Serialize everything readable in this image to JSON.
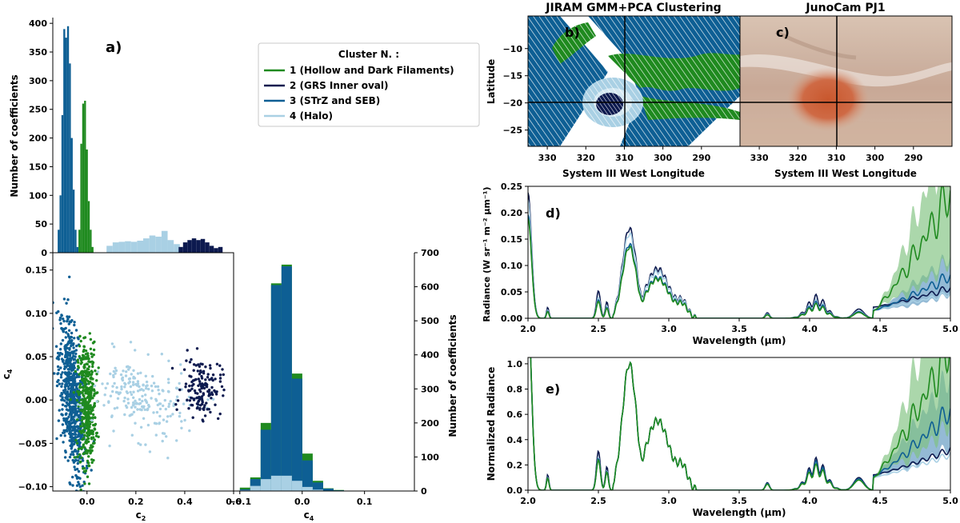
{
  "colors": {
    "c1": "#1f8a1f",
    "c2": "#0d1a4f",
    "c3": "#0e5f94",
    "c4": "#a9d0e4",
    "c1_fill": "#7ec27e",
    "c3_fill": "#5b95bf"
  },
  "legend": {
    "title": "Cluster N. :",
    "items": [
      "1 (Hollow and Dark Filaments)",
      "2 (GRS Inner oval)",
      "3 (STrZ and SEB)",
      "4 (Halo)"
    ]
  },
  "panel_labels": [
    "a)",
    "b)",
    "c)",
    "d)",
    "e)"
  ],
  "chart_data": [
    {
      "id": "hist_c2",
      "type": "bar",
      "title": "",
      "xlabel": "",
      "ylabel": "Number of coefficients",
      "xlim": [
        -0.14,
        0.6
      ],
      "ylim": [
        0,
        410
      ],
      "yticks": [
        "0",
        "50",
        "100",
        "150",
        "200",
        "250",
        "300",
        "350",
        "400"
      ],
      "series": [
        {
          "name": "3 (STrZ and SEB)",
          "bin_start": -0.12,
          "bin_width": 0.0077,
          "values": [
            40,
            100,
            240,
            390,
            375,
            395,
            330,
            200,
            110,
            40,
            10
          ]
        },
        {
          "name": "1 (Hollow and Dark Filaments)",
          "bin_start": -0.035,
          "bin_width": 0.0077,
          "values": [
            40,
            190,
            260,
            265,
            180,
            90,
            40,
            10
          ]
        },
        {
          "name": "4 (Halo)",
          "bin_start": 0.08,
          "bin_width": 0.025,
          "values": [
            12,
            18,
            19,
            20,
            19,
            21,
            25,
            30,
            28,
            38,
            22,
            15
          ]
        },
        {
          "name": "2 (GRS Inner oval)",
          "bin_start": 0.375,
          "bin_width": 0.018,
          "values": [
            10,
            18,
            22,
            25,
            22,
            24,
            18,
            12,
            8,
            10
          ]
        }
      ]
    },
    {
      "id": "scatter_c2_c4",
      "type": "scatter",
      "xlabel": "c",
      "xlabel_sub": "2",
      "ylabel": "c",
      "ylabel_sub": "4",
      "xlim": [
        -0.14,
        0.6
      ],
      "ylim": [
        -0.105,
        0.17
      ],
      "xticks": [
        "0.0",
        "0.2",
        "0.4",
        "0.6"
      ],
      "xtick_values": [
        0.0,
        0.2,
        0.4,
        0.6
      ],
      "yticks": [
        "0.15",
        "0.10",
        "0.05",
        "0.00",
        "−0.05",
        "−0.10"
      ],
      "ytick_values": [
        0.15,
        0.1,
        0.05,
        0.0,
        -0.05,
        -0.1
      ],
      "series": [
        {
          "name": "3",
          "center": [
            -0.06,
            0.0
          ],
          "spread": [
            0.028,
            0.04
          ],
          "count": 700
        },
        {
          "name": "1",
          "center": [
            0.0,
            -0.005
          ],
          "spread": [
            0.018,
            0.035
          ],
          "count": 420
        },
        {
          "name": "4",
          "center": [
            0.22,
            0.0
          ],
          "spread": [
            0.1,
            0.022
          ],
          "count": 220
        },
        {
          "name": "2",
          "center": [
            0.47,
            0.015
          ],
          "spread": [
            0.04,
            0.017
          ],
          "count": 150
        }
      ]
    },
    {
      "id": "hist_c4",
      "type": "bar",
      "xlabel": "c",
      "xlabel_sub": "4",
      "ylabel": "Number of coefficients",
      "xlim": [
        -0.11,
        0.18
      ],
      "ylim": [
        0,
        700
      ],
      "xticks": [
        "−0.1",
        "0.0",
        "0.1"
      ],
      "xtick_values": [
        -0.1,
        0.0,
        0.1
      ],
      "yticks": [
        "0",
        "100",
        "200",
        "300",
        "400",
        "500",
        "600",
        "700"
      ],
      "ytick_values": [
        0,
        100,
        200,
        300,
        400,
        500,
        600,
        700
      ],
      "series": [
        {
          "name": "1 (Hollow and Dark Filaments)",
          "bin_start": -0.1,
          "bin_width": 0.0167,
          "values": [
            10,
            40,
            200,
            610,
            665,
            345,
            110,
            30,
            8,
            3
          ]
        },
        {
          "name": "3 (STrZ and SEB)",
          "bin_start": -0.1,
          "bin_width": 0.0167,
          "values": [
            5,
            35,
            180,
            605,
            660,
            330,
            90,
            25,
            7,
            2
          ]
        },
        {
          "name": "4 (Halo)",
          "bin_start": -0.1,
          "bin_width": 0.0167,
          "values": [
            2,
            15,
            35,
            45,
            45,
            30,
            12,
            4,
            1,
            0
          ]
        }
      ]
    },
    {
      "id": "map_jiram",
      "type": "heatmap",
      "title": "JIRAM GMM+PCA Clustering",
      "xlabel": "System III West Longitude",
      "ylabel": "Latitude",
      "xlim": [
        335,
        280
      ],
      "ylim": [
        -28,
        -4
      ],
      "xticks": [
        "330",
        "320",
        "310",
        "300",
        "290"
      ],
      "xtick_values": [
        330,
        320,
        310,
        300,
        290
      ],
      "yticks": [
        "−10",
        "−15",
        "−20",
        "−25"
      ],
      "ytick_values": [
        -10,
        -15,
        -20,
        -25
      ],
      "crosshair": [
        310,
        -20
      ]
    },
    {
      "id": "map_junocam",
      "type": "heatmap",
      "title": "JunoCam PJ1",
      "xlabel": "System III West Longitude",
      "xlim": [
        335,
        280
      ],
      "ylim": [
        -28,
        -4
      ],
      "xticks": [
        "330",
        "320",
        "310",
        "300",
        "290"
      ],
      "xtick_values": [
        330,
        320,
        310,
        300,
        290
      ],
      "crosshair": [
        310,
        -20
      ]
    },
    {
      "id": "spectra_radiance",
      "type": "line",
      "xlabel": "Wavelength (μm)",
      "ylabel": "Radiance (W sr⁻¹ m⁻² μm⁻¹)",
      "xlim": [
        2.0,
        5.0
      ],
      "ylim": [
        0,
        0.25
      ],
      "xticks": [
        "2.0",
        "2.5",
        "3.0",
        "3.5",
        "4.0",
        "4.5",
        "5.0"
      ],
      "xtick_values": [
        2.0,
        2.5,
        3.0,
        3.5,
        4.0,
        4.5,
        5.0
      ],
      "yticks": [
        "0.00",
        "0.05",
        "0.10",
        "0.15",
        "0.20",
        "0.25"
      ],
      "ytick_values": [
        0,
        0.05,
        0.1,
        0.15,
        0.2,
        0.25
      ],
      "series": [
        {
          "name": "2 (GRS Inner oval)",
          "peak": 0.17,
          "bump1": 0.052,
          "bump2": 0.035,
          "tail_end": 0.036,
          "tail_rise": 0.03
        },
        {
          "name": "4 (Halo)",
          "peak": 0.16,
          "bump1": 0.04,
          "bump2": 0.028,
          "tail_end": 0.03,
          "tail_rise": 0.025
        },
        {
          "name": "3 (STrZ and SEB)",
          "peak": 0.14,
          "bump1": 0.035,
          "bump2": 0.025,
          "tail_end": 0.065,
          "tail_rise": 0.045
        },
        {
          "name": "1 (Hollow and Dark Filaments)",
          "peak": 0.135,
          "bump1": 0.032,
          "bump2": 0.022,
          "tail_end": 0.225,
          "tail_rise": 0.19
        }
      ]
    },
    {
      "id": "spectra_normalized",
      "type": "line",
      "xlabel": "Wavelength (μm)",
      "ylabel": "Normalized Radiance",
      "xlim": [
        2.0,
        5.0
      ],
      "ylim": [
        0,
        1.05
      ],
      "xticks": [
        "2.0",
        "2.5",
        "3.0",
        "3.5",
        "4.0",
        "4.5",
        "5.0"
      ],
      "xtick_values": [
        2.0,
        2.5,
        3.0,
        3.5,
        4.0,
        4.5,
        5.0
      ],
      "yticks": [
        "0.0",
        "0.2",
        "0.4",
        "0.6",
        "0.8",
        "1.0"
      ],
      "ytick_values": [
        0,
        0.2,
        0.4,
        0.6,
        0.8,
        1.0
      ],
      "series": [
        {
          "name": "2 (GRS Inner oval)",
          "peak": 1.0,
          "bump1": 0.31,
          "bump2": 0.2,
          "tail_end": 0.2,
          "tail_rise": 0.02
        },
        {
          "name": "4 (Halo)",
          "peak": 1.0,
          "bump1": 0.26,
          "bump2": 0.17,
          "tail_end": 0.18,
          "tail_rise": 0.02
        },
        {
          "name": "3 (STrZ and SEB)",
          "peak": 1.0,
          "bump1": 0.25,
          "bump2": 0.18,
          "tail_end": 0.52,
          "tail_rise": 0.35
        },
        {
          "name": "1 (Hollow and Dark Filaments)",
          "peak": 1.0,
          "bump1": 0.24,
          "bump2": 0.16,
          "tail_end": 1.05,
          "tail_rise": 0.9
        }
      ]
    }
  ]
}
